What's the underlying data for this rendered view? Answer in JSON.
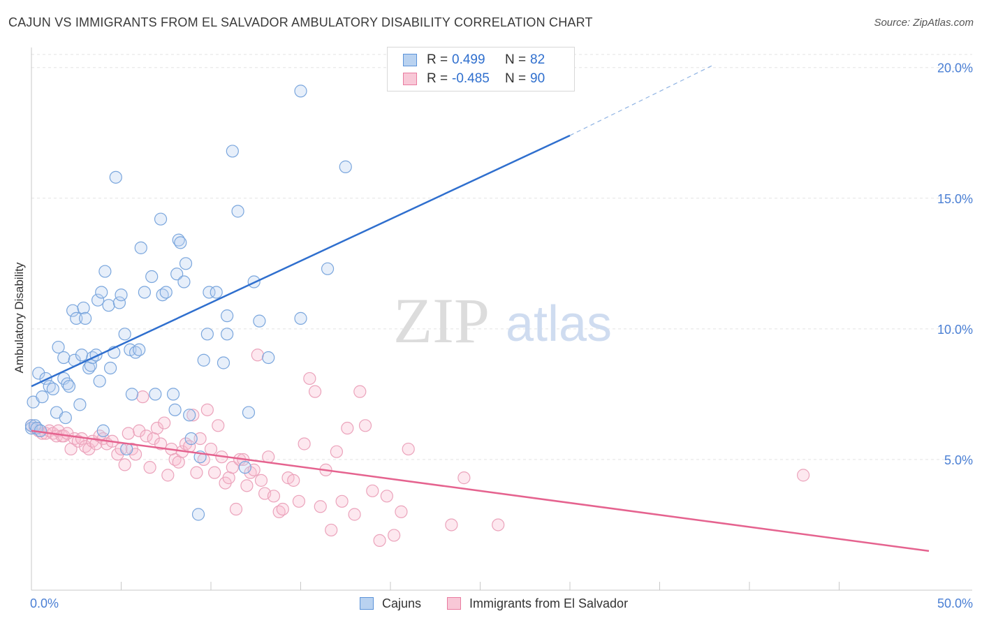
{
  "header": {
    "title": "CAJUN VS IMMIGRANTS FROM EL SALVADOR AMBULATORY DISABILITY CORRELATION CHART",
    "source": "Source: ZipAtlas.com"
  },
  "watermark": {
    "zip": "ZIP",
    "atlas": "atlas"
  },
  "legend": {
    "rows": [
      {
        "r_key": "R =",
        "r_value": "0.499",
        "n_key": "N =",
        "n_value": "82",
        "color": "#5b93d9"
      },
      {
        "r_key": "R =",
        "r_value": "-0.485",
        "n_key": "N =",
        "n_value": "90",
        "color": "#e97ba0"
      }
    ]
  },
  "bottom_legend": {
    "cajuns": "Cajuns",
    "salvador": "Immigrants from El Salvador"
  },
  "colors": {
    "blue": "#5b93d9",
    "blue_line": "#2f6fce",
    "pink": "#e97ba0",
    "pink_line": "#e5638f",
    "axis_text": "#4a7fd4"
  },
  "chart_data": {
    "type": "scatter",
    "title": "CAJUN VS IMMIGRANTS FROM EL SALVADOR AMBULATORY DISABILITY CORRELATION CHART",
    "ylabel": "Ambulatory Disability",
    "xlim": [
      0,
      50
    ],
    "ylim": [
      0,
      20.5
    ],
    "x_tick_labels": [
      "0.0%",
      "50.0%"
    ],
    "y_ticks": [
      5,
      10,
      15,
      20
    ],
    "y_tick_labels": [
      "5.0%",
      "10.0%",
      "15.0%",
      "20.0%"
    ],
    "grid": true,
    "legend_position": "top-center",
    "series": [
      {
        "name": "Cajuns",
        "color": "#5b93d9",
        "trend": {
          "x0": 0,
          "y0": 7.8,
          "x1": 30,
          "y1": 17.4,
          "dashed_to_x": 38,
          "dashed_to_y": 20.1
        },
        "points": [
          [
            0.0,
            6.2
          ],
          [
            0.1,
            7.2
          ],
          [
            0.4,
            8.3
          ],
          [
            0.6,
            7.4
          ],
          [
            0.8,
            8.1
          ],
          [
            1.0,
            7.8
          ],
          [
            1.2,
            7.7
          ],
          [
            1.5,
            9.3
          ],
          [
            1.4,
            6.8
          ],
          [
            1.8,
            8.1
          ],
          [
            1.8,
            8.9
          ],
          [
            1.9,
            6.6
          ],
          [
            2.0,
            7.9
          ],
          [
            2.1,
            7.8
          ],
          [
            2.3,
            10.7
          ],
          [
            2.4,
            8.8
          ],
          [
            2.5,
            10.4
          ],
          [
            2.7,
            7.1
          ],
          [
            2.8,
            9.0
          ],
          [
            2.9,
            10.8
          ],
          [
            3.0,
            10.4
          ],
          [
            3.2,
            8.5
          ],
          [
            3.3,
            8.6
          ],
          [
            3.4,
            8.9
          ],
          [
            3.6,
            9.0
          ],
          [
            3.7,
            11.1
          ],
          [
            3.8,
            8.0
          ],
          [
            3.9,
            11.4
          ],
          [
            4.0,
            6.1
          ],
          [
            4.1,
            12.2
          ],
          [
            4.3,
            10.9
          ],
          [
            4.4,
            8.5
          ],
          [
            4.6,
            9.1
          ],
          [
            4.7,
            15.8
          ],
          [
            4.9,
            11.0
          ],
          [
            5.0,
            11.3
          ],
          [
            5.2,
            9.8
          ],
          [
            5.3,
            5.4
          ],
          [
            5.5,
            9.2
          ],
          [
            5.6,
            7.5
          ],
          [
            5.8,
            9.1
          ],
          [
            6.0,
            9.2
          ],
          [
            6.1,
            13.1
          ],
          [
            6.3,
            11.4
          ],
          [
            6.7,
            12.0
          ],
          [
            6.9,
            7.5
          ],
          [
            7.2,
            14.2
          ],
          [
            7.3,
            11.3
          ],
          [
            7.5,
            11.4
          ],
          [
            7.9,
            7.5
          ],
          [
            8.0,
            6.9
          ],
          [
            8.1,
            12.1
          ],
          [
            8.2,
            13.4
          ],
          [
            8.3,
            13.3
          ],
          [
            8.5,
            11.8
          ],
          [
            8.6,
            12.5
          ],
          [
            8.8,
            6.7
          ],
          [
            8.9,
            5.8
          ],
          [
            9.3,
            2.9
          ],
          [
            9.4,
            5.1
          ],
          [
            9.6,
            8.8
          ],
          [
            9.8,
            9.8
          ],
          [
            9.9,
            11.4
          ],
          [
            10.3,
            11.4
          ],
          [
            10.7,
            8.7
          ],
          [
            10.9,
            9.8
          ],
          [
            10.9,
            10.5
          ],
          [
            11.2,
            16.8
          ],
          [
            11.5,
            14.5
          ],
          [
            11.9,
            4.7
          ],
          [
            12.1,
            6.8
          ],
          [
            12.4,
            11.8
          ],
          [
            12.7,
            10.3
          ],
          [
            13.2,
            8.9
          ],
          [
            15.0,
            10.4
          ],
          [
            15.0,
            19.1
          ],
          [
            16.5,
            12.3
          ],
          [
            17.5,
            16.2
          ],
          [
            0.0,
            6.3
          ],
          [
            0.2,
            6.3
          ],
          [
            0.3,
            6.2
          ],
          [
            0.5,
            6.1
          ]
        ]
      },
      {
        "name": "Immigrants from El Salvador",
        "color": "#e97ba0",
        "trend": {
          "x0": 0,
          "y0": 6.1,
          "x1": 50,
          "y1": 1.5
        },
        "points": [
          [
            0.0,
            6.3
          ],
          [
            0.2,
            6.2
          ],
          [
            0.4,
            6.1
          ],
          [
            0.6,
            6.0
          ],
          [
            0.8,
            6.0
          ],
          [
            1.0,
            6.1
          ],
          [
            1.2,
            6.0
          ],
          [
            1.4,
            5.9
          ],
          [
            1.5,
            6.1
          ],
          [
            1.7,
            5.9
          ],
          [
            1.8,
            5.9
          ],
          [
            2.0,
            6.0
          ],
          [
            2.2,
            5.4
          ],
          [
            2.4,
            5.8
          ],
          [
            2.6,
            5.7
          ],
          [
            2.8,
            5.8
          ],
          [
            3.0,
            5.5
          ],
          [
            3.2,
            5.4
          ],
          [
            3.4,
            5.7
          ],
          [
            3.6,
            5.6
          ],
          [
            3.8,
            5.9
          ],
          [
            4.0,
            5.8
          ],
          [
            4.2,
            5.6
          ],
          [
            4.5,
            5.7
          ],
          [
            4.8,
            5.2
          ],
          [
            5.0,
            5.4
          ],
          [
            5.2,
            4.8
          ],
          [
            5.4,
            6.0
          ],
          [
            5.6,
            5.4
          ],
          [
            5.8,
            5.2
          ],
          [
            6.0,
            6.1
          ],
          [
            6.2,
            7.4
          ],
          [
            6.4,
            5.9
          ],
          [
            6.6,
            4.7
          ],
          [
            6.8,
            5.8
          ],
          [
            7.0,
            6.2
          ],
          [
            7.2,
            5.6
          ],
          [
            7.4,
            6.4
          ],
          [
            7.6,
            4.4
          ],
          [
            7.8,
            5.4
          ],
          [
            8.0,
            5.0
          ],
          [
            8.2,
            4.9
          ],
          [
            8.4,
            5.3
          ],
          [
            8.6,
            5.6
          ],
          [
            8.8,
            5.5
          ],
          [
            9.0,
            6.7
          ],
          [
            9.2,
            4.5
          ],
          [
            9.4,
            5.8
          ],
          [
            9.6,
            5.0
          ],
          [
            9.8,
            6.9
          ],
          [
            10.0,
            5.4
          ],
          [
            10.2,
            4.5
          ],
          [
            10.4,
            6.3
          ],
          [
            10.6,
            5.1
          ],
          [
            10.8,
            4.1
          ],
          [
            11.0,
            4.3
          ],
          [
            11.2,
            4.7
          ],
          [
            11.4,
            3.1
          ],
          [
            11.6,
            5.0
          ],
          [
            11.8,
            5.0
          ],
          [
            12.0,
            4.0
          ],
          [
            12.2,
            4.5
          ],
          [
            12.4,
            4.6
          ],
          [
            12.6,
            9.0
          ],
          [
            12.8,
            4.2
          ],
          [
            13.0,
            3.7
          ],
          [
            13.2,
            5.1
          ],
          [
            13.5,
            3.6
          ],
          [
            13.8,
            3.0
          ],
          [
            14.0,
            3.1
          ],
          [
            14.3,
            4.3
          ],
          [
            14.6,
            4.2
          ],
          [
            14.9,
            3.4
          ],
          [
            15.2,
            5.6
          ],
          [
            15.5,
            8.1
          ],
          [
            15.8,
            7.6
          ],
          [
            16.1,
            3.2
          ],
          [
            16.4,
            4.6
          ],
          [
            16.7,
            2.3
          ],
          [
            17.0,
            5.3
          ],
          [
            17.3,
            3.4
          ],
          [
            17.6,
            6.2
          ],
          [
            18.0,
            2.9
          ],
          [
            18.3,
            7.6
          ],
          [
            18.6,
            6.3
          ],
          [
            19.0,
            3.8
          ],
          [
            19.4,
            1.9
          ],
          [
            19.8,
            3.6
          ],
          [
            20.2,
            2.1
          ],
          [
            20.6,
            3.0
          ]
        ]
      }
    ],
    "extra_pink_points": [
      [
        21.0,
        5.4
      ],
      [
        23.4,
        2.5
      ],
      [
        24.1,
        4.3
      ],
      [
        26.0,
        2.5
      ],
      [
        43.0,
        4.4
      ]
    ]
  }
}
